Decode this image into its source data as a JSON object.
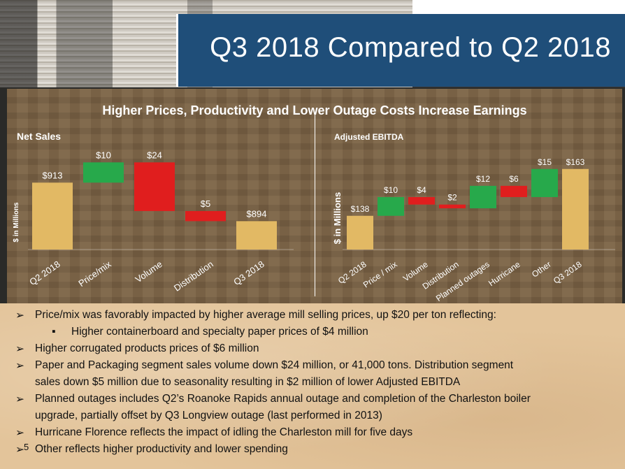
{
  "slide": {
    "title": "Q3 2018 Compared to Q2 2018",
    "headline": "Higher Prices, Productivity and Lower Outage Costs Increase Earnings",
    "page_number": "5"
  },
  "colors": {
    "title_band": "#1f4e79",
    "bar": "#e2b964",
    "increase": "#27a94b",
    "decrease": "#e01e1e"
  },
  "chart_data": [
    {
      "type": "bar",
      "title": "Net Sales",
      "ylabel": "$ in Millions",
      "categories": [
        "Q2 2018",
        "Price/mix",
        "Volume",
        "Distribution",
        "Q3 2018"
      ],
      "value_labels": [
        "$913",
        "$10",
        "$24",
        "$5",
        "$894"
      ],
      "steps": [
        {
          "kind": "total",
          "value": 913
        },
        {
          "kind": "increase",
          "value": 10
        },
        {
          "kind": "decrease",
          "value": 24
        },
        {
          "kind": "decrease",
          "value": 5
        },
        {
          "kind": "total",
          "value": 894
        }
      ]
    },
    {
      "type": "bar",
      "title": "Adjusted EBITDA",
      "ylabel": "$ in Millions",
      "categories": [
        "Q2 2018",
        "Price / mix",
        "Volume",
        "Distribution",
        "Planned outages",
        "Hurricane",
        "Other",
        "Q3 2018"
      ],
      "value_labels": [
        "$138",
        "$10",
        "$4",
        "$2",
        "$12",
        "$6",
        "$15",
        "$163"
      ],
      "steps": [
        {
          "kind": "total",
          "value": 138
        },
        {
          "kind": "increase",
          "value": 10
        },
        {
          "kind": "decrease",
          "value": 4
        },
        {
          "kind": "decrease",
          "value": 2
        },
        {
          "kind": "increase",
          "value": 12
        },
        {
          "kind": "decrease",
          "value": 6
        },
        {
          "kind": "increase",
          "value": 15
        },
        {
          "kind": "total",
          "value": 163
        }
      ]
    }
  ],
  "bullets": [
    {
      "marker": "➢",
      "level": 1,
      "text": "Price/mix was favorably impacted by higher average mill selling prices, up $20 per ton reflecting:"
    },
    {
      "marker": "▪",
      "level": 2,
      "text": "Higher containerboard and specialty paper prices of $4 million"
    },
    {
      "marker": "➢",
      "level": 1,
      "text": "Higher corrugated products prices of $6 million"
    },
    {
      "marker": "➢",
      "level": 1,
      "text": "Paper and Packaging segment sales volume down $24 million, or 41,000 tons. Distribution segment"
    },
    {
      "marker": "",
      "level": 1,
      "text": "sales down $5 million due to seasonality resulting in $2 million of lower Adjusted EBITDA"
    },
    {
      "marker": "➢",
      "level": 1,
      "text": "Planned outages includes Q2’s Roanoke Rapids annual outage and completion of the Charleston boiler"
    },
    {
      "marker": "",
      "level": 1,
      "text": "upgrade, partially offset by Q3 Longview outage (last performed in 2013)"
    },
    {
      "marker": "➢",
      "level": 1,
      "text": "Hurricane Florence reflects the impact of idling the Charleston mill for five days"
    },
    {
      "marker": "➢",
      "level": 1,
      "text": "Other reflects higher productivity and lower spending"
    }
  ]
}
